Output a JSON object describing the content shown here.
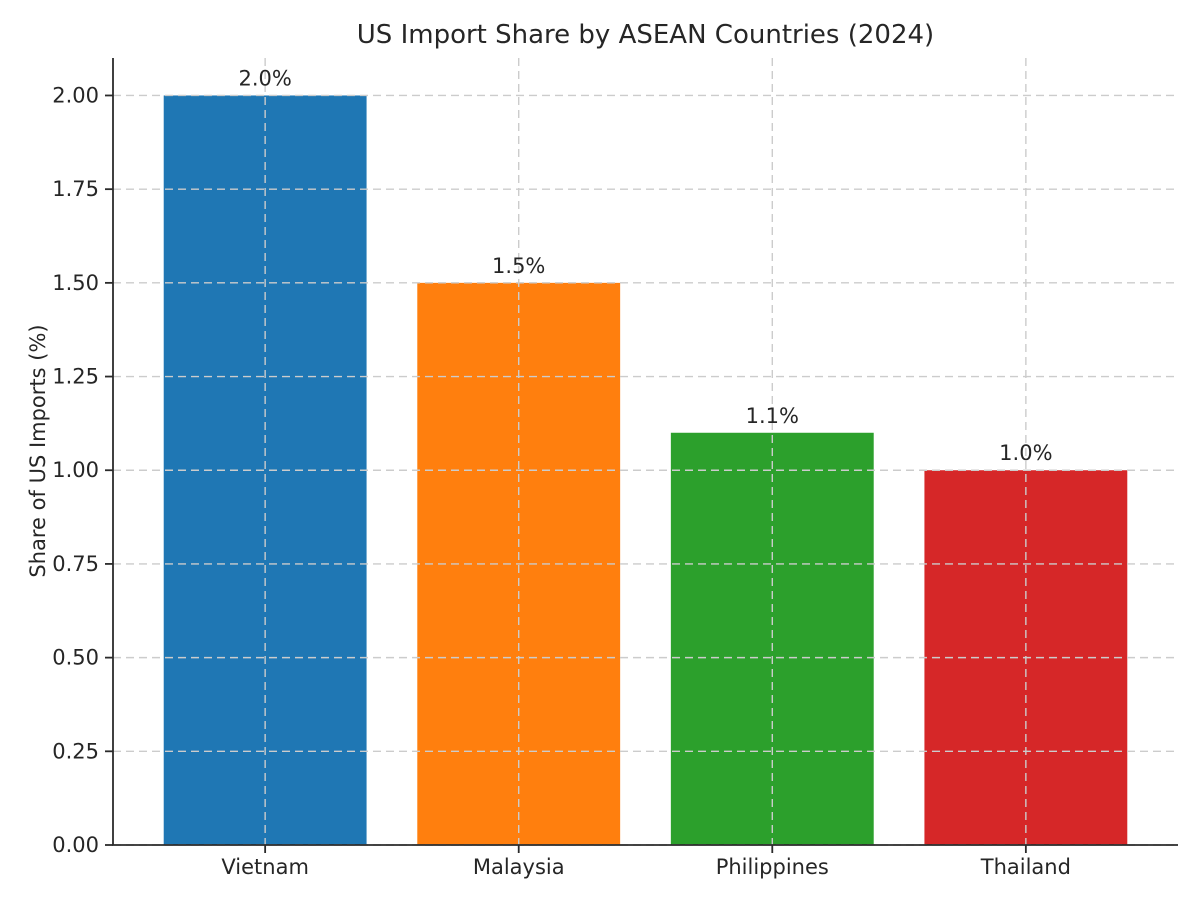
{
  "chart_data": {
    "type": "bar",
    "title": "US Import Share by ASEAN Countries (2024)",
    "xlabel": "",
    "ylabel": "Share of US Imports (%)",
    "categories": [
      "Vietnam",
      "Malaysia",
      "Philippines",
      "Thailand"
    ],
    "values": [
      2.0,
      1.5,
      1.1,
      1.0
    ],
    "bar_labels": [
      "2.0%",
      "1.5%",
      "1.1%",
      "1.0%"
    ],
    "bar_colors": [
      "#1f77b4",
      "#ff7f0e",
      "#2ca02c",
      "#d62728"
    ],
    "ylim": [
      0,
      2.1
    ],
    "yticks": [
      0.0,
      0.25,
      0.5,
      0.75,
      1.0,
      1.25,
      1.5,
      1.75,
      2.0
    ],
    "ytick_labels": [
      "0.00",
      "0.25",
      "0.50",
      "0.75",
      "1.00",
      "1.25",
      "1.50",
      "1.75",
      "2.00"
    ],
    "grid": {
      "visible": true,
      "axis": "both",
      "style": "dashed",
      "color": "#cccccc",
      "drawn_over_bars": true
    },
    "legend": "none",
    "spine_color": "#2b2b2b",
    "text_color": "#262626"
  }
}
